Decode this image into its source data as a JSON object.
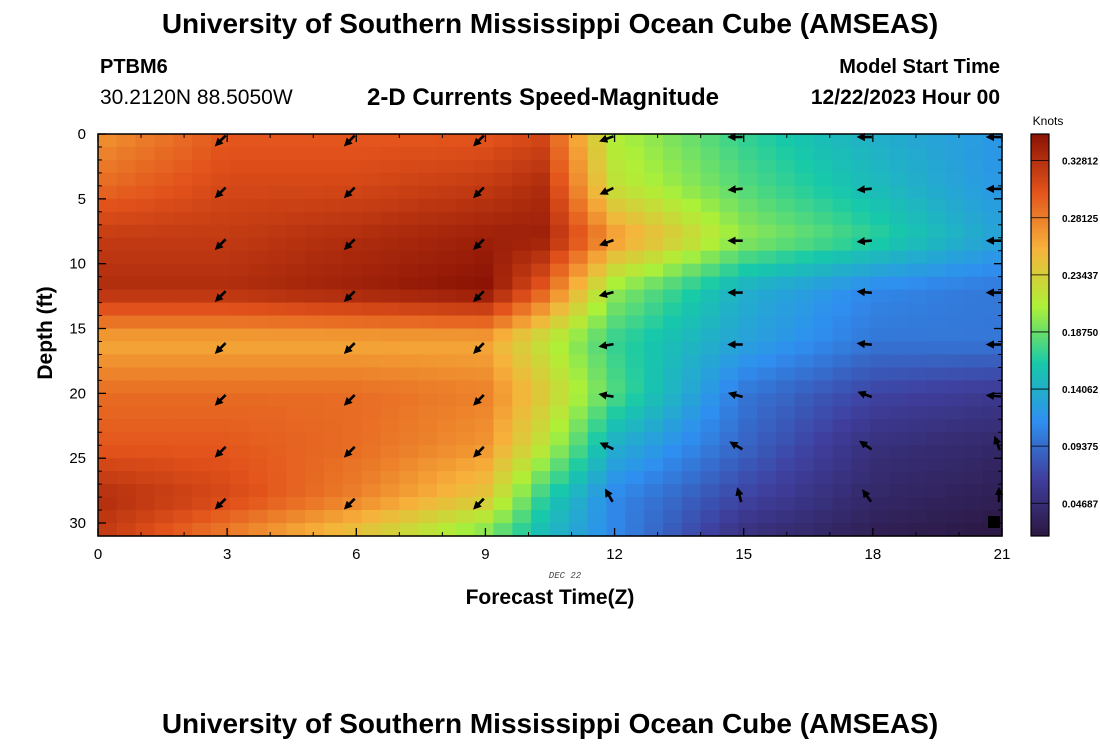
{
  "header": {
    "title": "University of Southern Mississippi Ocean Cube (AMSEAS)",
    "station": "PTBM6",
    "coords": "30.2120N  88.5050W",
    "subtitle": "2-D Currents Speed-Magnitude",
    "model_start_label": "Model Start Time",
    "model_start_value": "12/22/2023 Hour 00"
  },
  "footer": {
    "title": "University of Southern Mississippi Ocean Cube (AMSEAS)"
  },
  "chart_data": {
    "type": "heatmap",
    "title": "2-D Currents Speed-Magnitude",
    "xlabel": "Forecast Time(Z)",
    "ylabel": "Depth (ft)",
    "date_label": "DEC 22",
    "xlim": [
      0,
      21
    ],
    "ylim": [
      0,
      31
    ],
    "x_ticks": [
      "0",
      "3",
      "6",
      "9",
      "12",
      "15",
      "18",
      "21"
    ],
    "y_ticks": [
      "0",
      "5",
      "10",
      "15",
      "20",
      "25",
      "30"
    ],
    "colorbar": {
      "title": "Knots",
      "range": [
        0.02,
        0.35
      ],
      "ticks": [
        "0.04687",
        "0.09375",
        "0.14062",
        "0.18750",
        "0.23437",
        "0.28125",
        "0.32812"
      ],
      "colors": [
        "#2b1740",
        "#3f3f9e",
        "#2f8ff0",
        "#17c9a9",
        "#aef037",
        "#f7b23b",
        "#e2521b",
        "#8a1204"
      ]
    },
    "speed_profiles": {
      "depths": [
        0,
        4,
        8,
        12,
        16,
        20,
        24,
        28,
        31
      ],
      "times": [
        0,
        3,
        6,
        9,
        10.3,
        12,
        15,
        18,
        21
      ],
      "values": [
        [
          0.27,
          0.3,
          0.3,
          0.3,
          0.31,
          0.21,
          0.17,
          0.14,
          0.12
        ],
        [
          0.29,
          0.31,
          0.31,
          0.32,
          0.33,
          0.22,
          0.18,
          0.15,
          0.12
        ],
        [
          0.32,
          0.32,
          0.33,
          0.34,
          0.34,
          0.27,
          0.2,
          0.17,
          0.13
        ],
        [
          0.33,
          0.33,
          0.34,
          0.35,
          0.3,
          0.2,
          0.14,
          0.11,
          0.1
        ],
        [
          0.26,
          0.26,
          0.26,
          0.26,
          0.22,
          0.17,
          0.13,
          0.1,
          0.1
        ],
        [
          0.29,
          0.29,
          0.29,
          0.28,
          0.24,
          0.18,
          0.1,
          0.07,
          0.06
        ],
        [
          0.3,
          0.3,
          0.29,
          0.27,
          0.22,
          0.14,
          0.09,
          0.05,
          0.04
        ],
        [
          0.33,
          0.31,
          0.28,
          0.24,
          0.17,
          0.11,
          0.07,
          0.04,
          0.03
        ],
        [
          0.32,
          0.28,
          0.24,
          0.19,
          0.15,
          0.11,
          0.05,
          0.03,
          0.02
        ]
      ]
    },
    "vectors": {
      "times": [
        3,
        6,
        9,
        12,
        15,
        18,
        21
      ],
      "depths": [
        0,
        4,
        8,
        12,
        16,
        20,
        24,
        28
      ],
      "directions_deg": [
        [
          225,
          225,
          225,
          225,
          225,
          225,
          225,
          225
        ],
        [
          225,
          225,
          225,
          225,
          225,
          225,
          225,
          225
        ],
        [
          225,
          225,
          225,
          225,
          225,
          225,
          225,
          225
        ],
        [
          200,
          205,
          200,
          195,
          190,
          170,
          155,
          120
        ],
        [
          180,
          185,
          180,
          180,
          180,
          165,
          150,
          105
        ],
        [
          180,
          185,
          185,
          175,
          175,
          160,
          145,
          125
        ],
        [
          180,
          180,
          180,
          180,
          180,
          175,
          110,
          90
        ]
      ]
    }
  }
}
